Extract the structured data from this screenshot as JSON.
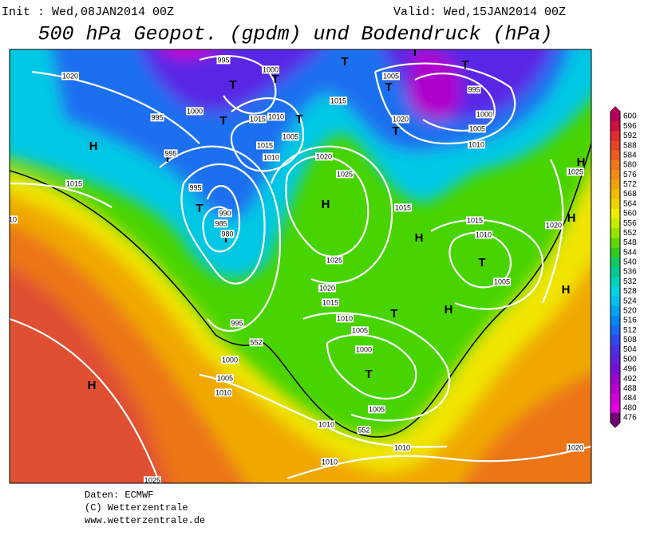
{
  "header": {
    "init": "Init : Wed,08JAN2014 00Z",
    "valid": "Valid: Wed,15JAN2014 00Z",
    "title": "500 hPa Geopot. (gpdm) und Bodendruck (hPa)"
  },
  "footer": [
    "Daten: ECMWF",
    "(C) Wetterzentrale",
    "www.wetterzentrale.de"
  ],
  "colorbar": {
    "labels": [
      600,
      596,
      592,
      588,
      584,
      580,
      576,
      572,
      568,
      564,
      560,
      556,
      552,
      548,
      544,
      540,
      536,
      532,
      528,
      524,
      520,
      516,
      512,
      508,
      504,
      500,
      496,
      492,
      488,
      484,
      480,
      476
    ],
    "colors": [
      "#b8005a",
      "#d0103c",
      "#e02c2c",
      "#e84424",
      "#ec5c20",
      "#f0741c",
      "#f08c14",
      "#f0a40c",
      "#f0bc04",
      "#f0d400",
      "#f0ec00",
      "#c8ec00",
      "#98e400",
      "#60d800",
      "#30cc20",
      "#10c860",
      "#00cc90",
      "#00d4b8",
      "#00d4dc",
      "#00c0f0",
      "#00a4f0",
      "#0088f0",
      "#1868f0",
      "#3048ec",
      "#4830e4",
      "#6020dc",
      "#7810d4",
      "#9808cc",
      "#b800cc",
      "#d000d4",
      "#e000e0",
      "#700070"
    ]
  },
  "map_labels": {
    "centers": [
      "H",
      "H",
      "H",
      "H",
      "H",
      "H",
      "H",
      "H",
      "T",
      "T",
      "T",
      "T",
      "T",
      "T",
      "T",
      "T",
      "T",
      "T",
      "T",
      "T",
      "T",
      "T",
      "T"
    ],
    "isobars": [
      1020,
      995,
      1000,
      1005,
      995,
      1000,
      1005,
      1010,
      1000,
      995,
      1015,
      1010,
      1015,
      1020,
      1005,
      1015,
      1010,
      995,
      1020,
      1025,
      1015,
      995,
      990,
      985,
      980,
      1015,
      1015,
      1010,
      1020,
      1025,
      1025,
      1005,
      1020,
      1015,
      1010,
      995,
      1005,
      1000,
      1000,
      1005,
      1010,
      1005,
      1010,
      1010,
      1010,
      1020,
      1025,
      552,
      552,
      10
    ]
  }
}
